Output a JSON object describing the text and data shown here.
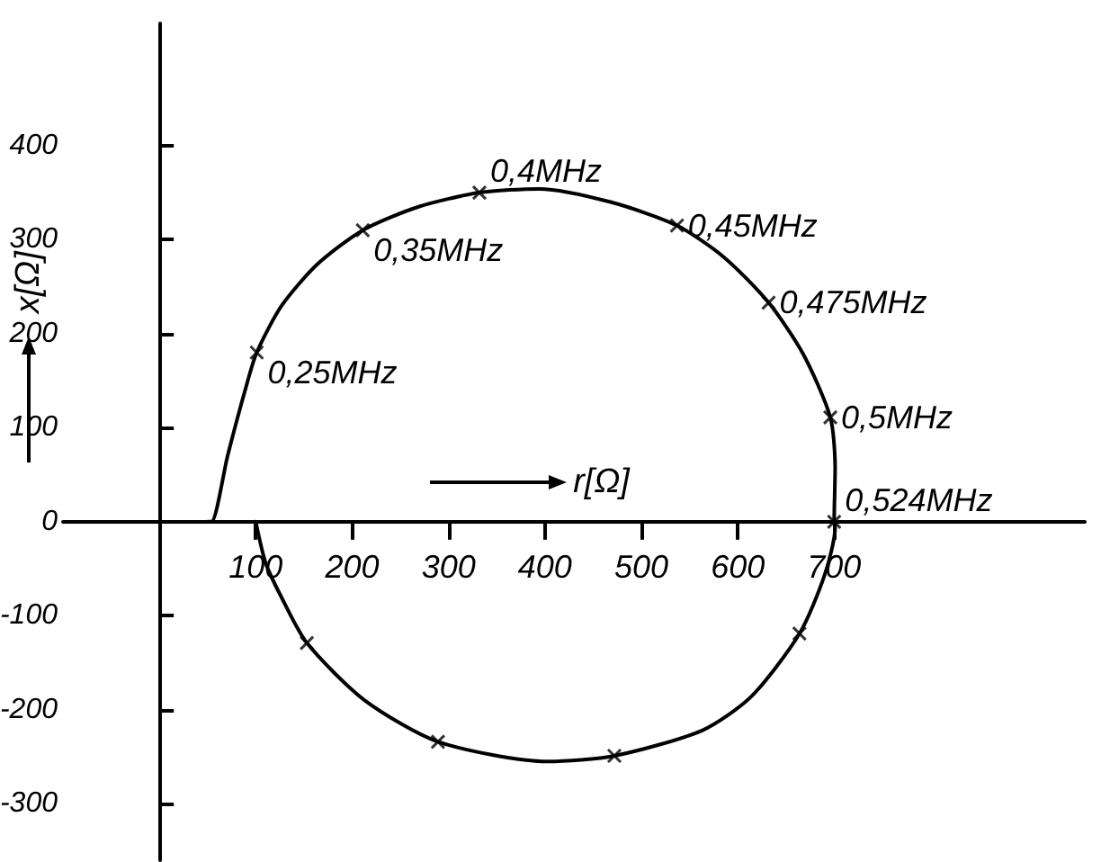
{
  "chart_data": {
    "type": "line",
    "xlabel": "r[Ω]",
    "ylabel": "x[Ω]",
    "xlim": [
      -100,
      960
    ],
    "ylim": [
      -360,
      530
    ],
    "xticks": [
      100,
      200,
      300,
      400,
      500,
      600,
      700
    ],
    "yticks": [
      -300,
      -200,
      -100,
      0,
      100,
      200,
      300,
      400
    ],
    "grid": false,
    "series": [
      {
        "color": "#000000",
        "marker": "none",
        "line_style": "solid",
        "x": [
          50,
          54,
          71,
          89,
          101,
          127,
          164,
          211,
          269,
          332,
          394,
          468,
          537,
          586,
          632,
          668,
          696,
          701,
          700,
          701,
          690,
          664,
          614,
          563,
          472,
          403,
          289,
          213,
          153,
          125,
          110,
          100
        ],
        "values": [
          0,
          0,
          71,
          140,
          180,
          230,
          274,
          310,
          335,
          350,
          354,
          340,
          315,
          281,
          233,
          178,
          111,
          57,
          0,
          -6,
          -57,
          -119,
          -186,
          -222,
          -249,
          -255,
          -234,
          -190,
          -129,
          -77,
          -43,
          0
        ]
      },
      {
        "type": "scatter",
        "color": "#000000",
        "marker": "cross",
        "x": [
          101,
          211,
          332,
          537,
          632,
          696,
          700,
          664,
          472,
          289,
          153
        ],
        "values": [
          180,
          310,
          350,
          315,
          233,
          111,
          0,
          -119,
          -249,
          -234,
          -129
        ]
      }
    ],
    "annotations": [
      {
        "text": "0,25MHz",
        "x": 101,
        "y": 180
      },
      {
        "text": "0,35MHz",
        "x": 211,
        "y": 310
      },
      {
        "text": "0,4MHz",
        "x": 332,
        "y": 350
      },
      {
        "text": "0,45MHz",
        "x": 537,
        "y": 315
      },
      {
        "text": "0,475MHz",
        "x": 632,
        "y": 233
      },
      {
        "text": "0,5MHz",
        "x": 696,
        "y": 111
      },
      {
        "text": "0,524MHz",
        "x": 700,
        "y": 0
      }
    ]
  }
}
